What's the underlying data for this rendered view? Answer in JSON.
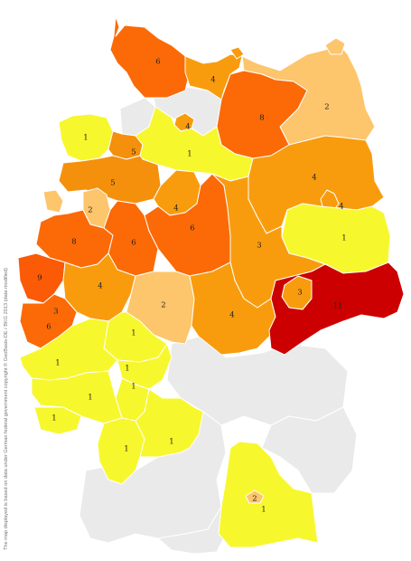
{
  "map": {
    "legend_colors": {
      "1": "#f7f72e",
      "2": "#fdc56c",
      "3": "#f89c0e",
      "4": "#f89c0e",
      "5": "#f5900c",
      "6": "#fb6a07",
      "8": "#fb6a07",
      "9": "#fb5a06",
      "11": "#cc0000",
      "none": "#eaeaea"
    },
    "regions": [
      {
        "id": "schleswig-north",
        "value": "6"
      },
      {
        "id": "mecklenburg-west",
        "value": "4"
      },
      {
        "id": "mecklenburg-east",
        "value": "2"
      },
      {
        "id": "hamburg",
        "value": "4"
      },
      {
        "id": "brandenburg-north",
        "value": "8"
      },
      {
        "id": "ostfriesland",
        "value": "1"
      },
      {
        "id": "bremen",
        "value": "5"
      },
      {
        "id": "lueneburg",
        "value": "1"
      },
      {
        "id": "weser-ems",
        "value": "5"
      },
      {
        "id": "osnabrueck",
        "value": "2"
      },
      {
        "id": "braunschweig",
        "value": "4"
      },
      {
        "id": "brandenburg-south",
        "value": "4"
      },
      {
        "id": "berlin",
        "value": "4"
      },
      {
        "id": "muenster",
        "value": "8"
      },
      {
        "id": "bielefeld",
        "value": "6"
      },
      {
        "id": "kassel",
        "value": "6"
      },
      {
        "id": "magdeburg",
        "value": "3"
      },
      {
        "id": "lausitz",
        "value": "1"
      },
      {
        "id": "duesseldorf",
        "value": "9"
      },
      {
        "id": "siegen",
        "value": "4"
      },
      {
        "id": "koeln",
        "value": "3"
      },
      {
        "id": "aachen",
        "value": "6"
      },
      {
        "id": "fulda",
        "value": "2"
      },
      {
        "id": "erfurt",
        "value": "4"
      },
      {
        "id": "sachsen-west",
        "value": "3"
      },
      {
        "id": "dresden",
        "value": "11"
      },
      {
        "id": "koblenz",
        "value": "1"
      },
      {
        "id": "frankfurt",
        "value": "1"
      },
      {
        "id": "darmstadt",
        "value": "1"
      },
      {
        "id": "pfalz",
        "value": "1"
      },
      {
        "id": "mannheim",
        "value": "1"
      },
      {
        "id": "saar",
        "value": "1"
      },
      {
        "id": "karlsruhe",
        "value": "1"
      },
      {
        "id": "stuttgart",
        "value": "1"
      },
      {
        "id": "muenchen",
        "value": "1"
      },
      {
        "id": "muenchen-city",
        "value": "2"
      },
      {
        "id": "bayern-north",
        "value": "none"
      },
      {
        "id": "bayern-east",
        "value": "none"
      },
      {
        "id": "bw-south",
        "value": "none"
      },
      {
        "id": "allgaeu",
        "value": "none"
      },
      {
        "id": "nds-west",
        "value": "none"
      },
      {
        "id": "nds-mid",
        "value": "none"
      }
    ]
  },
  "credit": "The map displayed is based on data under German federal government copyright © GeoBasis-DE / BKG 2013 (data modified)"
}
